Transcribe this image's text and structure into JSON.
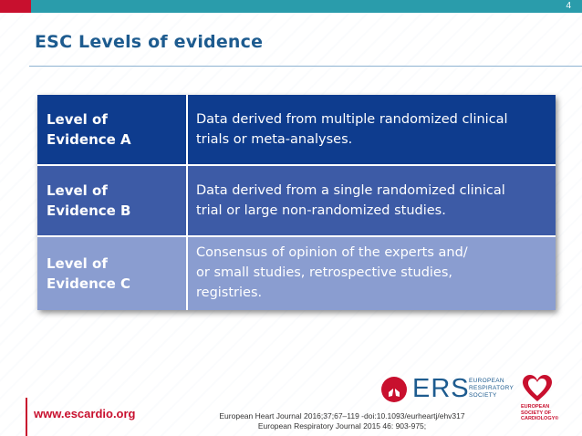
{
  "header": {
    "page_number": "4",
    "title": "ESC Levels of evidence",
    "colors": {
      "title": "#1d5b8f",
      "top_bar": "#2a9cab",
      "accent": "#c8102e"
    }
  },
  "table": {
    "rows": [
      {
        "label": [
          "Level of",
          "Evidence A"
        ],
        "description": [
          "Data derived from multiple randomized clinical",
          "trials or meta-analyses."
        ],
        "color": "#0e3c8e"
      },
      {
        "label": [
          "Level of",
          "Evidence B"
        ],
        "description": [
          "Data derived from a single randomized clinical",
          "trial or large non-randomized studies."
        ],
        "color": "#3d5ba6"
      },
      {
        "label": [
          "Level of",
          "Evidence C"
        ],
        "description": [
          "Consensus of opinion of the experts and/",
          "or small studies, retrospective studies,",
          "registries."
        ],
        "color": "#8a9dd0"
      }
    ]
  },
  "footer": {
    "website": "www.escardio.org",
    "references": [
      "European Heart Journal 2016;37;67–119 -doi:10.1093/eurheartj/ehv317",
      "European Respiratory Journal 2015 46: 903-975;"
    ],
    "ers_logo": {
      "abbr": "ERS",
      "lines": [
        "EUROPEAN",
        "RESPIRATORY",
        "SOCIETY"
      ],
      "icon": "lungs-icon"
    },
    "esc_logo": {
      "lines": [
        "EUROPEAN",
        "SOCIETY OF",
        "CARDIOLOGY®"
      ],
      "icon": "heart-icon"
    }
  }
}
